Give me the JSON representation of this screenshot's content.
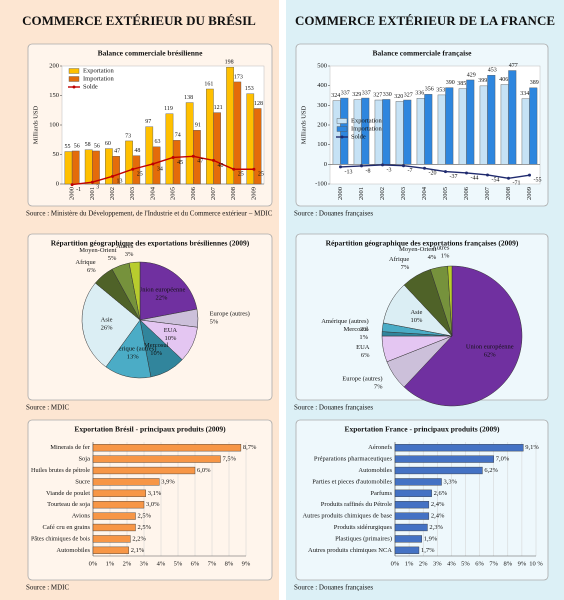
{
  "titles": [
    "COMMERCE EXTÉRIEUR DU BRÉSIL",
    "COMMERCE EXTÉRIEUR DE LA FRANCE"
  ],
  "chart_data": [
    {
      "type": "combo",
      "title": "Balance commerciale brésilienne",
      "y_label": "Milliards USD",
      "categories": [
        "2000",
        "2001",
        "2002",
        "2003",
        "2004",
        "2005",
        "2006",
        "2007",
        "2008",
        "2009"
      ],
      "series": [
        {
          "name": "Exportation",
          "color": "#ffc000",
          "values": [
            55,
            58,
            60,
            73,
            97,
            119,
            138,
            161,
            198,
            153
          ]
        },
        {
          "name": "Importation",
          "color": "#e46c0a",
          "values": [
            56,
            56,
            47,
            48,
            63,
            74,
            91,
            121,
            173,
            128
          ]
        },
        {
          "name": "Solde",
          "color": "#c00000",
          "kind": "line",
          "values": [
            -1,
            3,
            13,
            25,
            34,
            45,
            47,
            40,
            25,
            25
          ]
        }
      ],
      "ylim": [
        0,
        200
      ],
      "yticks": [
        0,
        50,
        100,
        150,
        200
      ],
      "legend": "upper left",
      "source": "Source : Ministère du Développement, de l'Industrie et du Commerce extérieur – MDIC"
    },
    {
      "type": "combo",
      "title": "Balance commerciale française",
      "y_label": "Milliards USD",
      "categories": [
        "2000",
        "2001",
        "2002",
        "2003",
        "2004",
        "2005",
        "2006",
        "2007",
        "2008",
        "2009"
      ],
      "series": [
        {
          "name": "Exportation",
          "color": "#c6e2f5",
          "values": [
            324,
            329,
            327,
            320,
            336,
            353,
            385,
            399,
            406,
            334
          ]
        },
        {
          "name": "Importation",
          "color": "#2e86de",
          "values": [
            337,
            337,
            330,
            327,
            356,
            390,
            429,
            453,
            477,
            389
          ]
        },
        {
          "name": "Solde",
          "color": "#1f2a6e",
          "kind": "line",
          "values": [
            -13,
            -8,
            -3,
            -7,
            -20,
            -37,
            -44,
            -54,
            -71,
            -55
          ]
        }
      ],
      "ylim": [
        -100,
        500
      ],
      "yticks": [
        -100,
        0,
        100,
        200,
        300,
        400,
        500
      ],
      "legend": "center left",
      "source": "Source : Douanes françaises"
    },
    {
      "type": "pie",
      "title": "Répartition géographique des exportations brésiliennes (2009)",
      "categories": [
        "Union européenne",
        "Europe (autres)",
        "EUA",
        "Mercosul",
        "Amérique (autres)",
        "Asie",
        "Afrique",
        "Moyen-Orient",
        "Autres"
      ],
      "values": [
        22,
        5,
        10,
        10,
        13,
        26,
        6,
        5,
        3
      ],
      "value_labels": [
        "22%",
        "5%",
        "10%",
        "10%",
        "13%",
        "26%",
        "6%",
        "5%",
        "3%"
      ],
      "colors": [
        "#7030a0",
        "#ccc0da",
        "#e4c6f2",
        "#31859c",
        "#4bacc6",
        "#dbeef4",
        "#4f6228",
        "#76923c",
        "#b8cc2e"
      ],
      "source": "Source : MDIC"
    },
    {
      "type": "pie",
      "title": "Répartition géographique des exportations françaises (2009)",
      "categories": [
        "Union européenne",
        "Europe (autres)",
        "EUA",
        "Mercosul",
        "Amérique (autres)",
        "Asie",
        "Afrique",
        "Moyen-Orient",
        "Autres"
      ],
      "values": [
        62,
        7,
        6,
        1,
        2,
        10,
        7,
        4,
        1
      ],
      "value_labels": [
        "62%",
        "7%",
        "6%",
        "1%",
        "2%",
        "10%",
        "7%",
        "4%",
        "1%"
      ],
      "colors": [
        "#7030a0",
        "#ccc0da",
        "#e4c6f2",
        "#31859c",
        "#4bacc6",
        "#dbeef4",
        "#4f6228",
        "#76923c",
        "#b8cc2e"
      ],
      "source": "Source : Douanes françaises"
    },
    {
      "type": "hbar",
      "title": "Exportation Brésil - principaux produits (2009)",
      "color": "#f79646",
      "categories": [
        "Minerais de fer",
        "Soja",
        "Huiles brutes de pétrole",
        "Sucre",
        "Viande de poulet",
        "Tourteau de soja",
        "Avions",
        "Café cru en grains",
        "Pâtes chimiques de bois",
        "Automobiles"
      ],
      "values": [
        8.7,
        7.5,
        6.0,
        3.9,
        3.1,
        3.0,
        2.5,
        2.5,
        2.2,
        2.1
      ],
      "value_labels": [
        "8,7%",
        "7,5%",
        "6,0%",
        "3,9%",
        "3,1%",
        "3,0%",
        "2,5%",
        "2,5%",
        "2,2%",
        "2,1%"
      ],
      "xlim": [
        0,
        9
      ],
      "xticks": [
        {
          "value": 0,
          "label": "0%"
        },
        {
          "value": 1,
          "label": "1%"
        },
        {
          "value": 2,
          "label": "2%"
        },
        {
          "value": 3,
          "label": "3%"
        },
        {
          "value": 4,
          "label": "4%"
        },
        {
          "value": 5,
          "label": "5%"
        },
        {
          "value": 6,
          "label": "6%"
        },
        {
          "value": 7,
          "label": "7%"
        },
        {
          "value": 8,
          "label": "8%"
        },
        {
          "value": 9,
          "label": "9%"
        }
      ],
      "grid": true,
      "source": "Source : MDIC"
    },
    {
      "type": "hbar",
      "title": "Exportation France - principaux produits (2009)",
      "color": "#4472c4",
      "categories": [
        "Aéronefs",
        "Préparations pharmaceutiques",
        "Automobiles",
        "Parties et pieces d'automobiles",
        "Parfums",
        "Produits raffinés du Pétrole",
        "Autres produits chimiques de base",
        "Produits sidérurgiques",
        "Plastiques (primaires)",
        "Autres produits chimiques NCA"
      ],
      "values": [
        9.1,
        7.0,
        6.2,
        3.3,
        2.6,
        2.4,
        2.4,
        2.3,
        1.9,
        1.7
      ],
      "value_labels": [
        "9,1%",
        "7,0%",
        "6,2%",
        "3,3%",
        "2,6%",
        "2,4%",
        "2,4%",
        "2,3%",
        "1,9%",
        "1,7%"
      ],
      "xlim": [
        0,
        10
      ],
      "xticks": [
        {
          "value": 0,
          "label": "0%"
        },
        {
          "value": 1,
          "label": "1%"
        },
        {
          "value": 2,
          "label": "2%"
        },
        {
          "value": 3,
          "label": "3%"
        },
        {
          "value": 4,
          "label": "4%"
        },
        {
          "value": 5,
          "label": "5%"
        },
        {
          "value": 6,
          "label": "6%"
        },
        {
          "value": 7,
          "label": "7%"
        },
        {
          "value": 8,
          "label": "8%"
        },
        {
          "value": 9,
          "label": "9%"
        },
        {
          "value": 10,
          "label": "10 %"
        }
      ],
      "grid": true,
      "source": "Source : Douanes françaises"
    }
  ]
}
